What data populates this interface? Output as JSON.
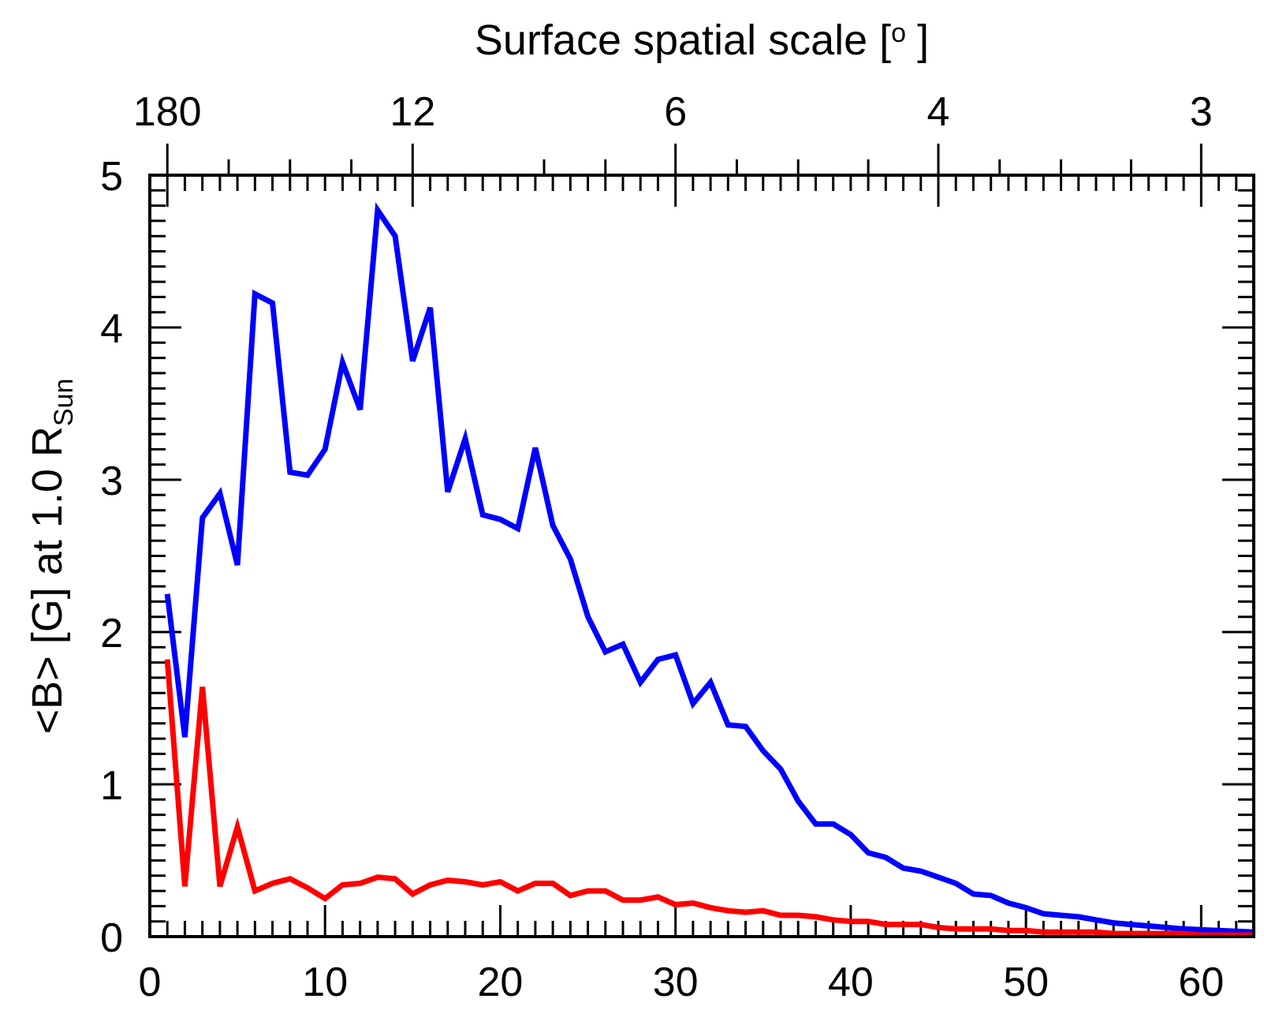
{
  "chart_data": {
    "type": "line",
    "title": "",
    "xlabel": "",
    "ylabel": {
      "main": "<B> [G] at 1.0 R",
      "subscript": "Sun"
    },
    "top_axis": {
      "label_main": "Surface spatial scale [",
      "label_degree": "o",
      "label_close": "]",
      "ticks": [
        {
          "label": "180",
          "x": 1
        },
        {
          "label": "12",
          "x": 15
        },
        {
          "label": "6",
          "x": 30
        },
        {
          "label": "4",
          "x": 45
        },
        {
          "label": "3",
          "x": 60
        }
      ]
    },
    "xlim": [
      0,
      63
    ],
    "ylim": [
      0,
      5
    ],
    "xticks": [
      {
        "value": 0,
        "label": "0"
      },
      {
        "value": 10,
        "label": "10"
      },
      {
        "value": 20,
        "label": "20"
      },
      {
        "value": 30,
        "label": "30"
      },
      {
        "value": 40,
        "label": "40"
      },
      {
        "value": 50,
        "label": "50"
      },
      {
        "value": 60,
        "label": "60"
      }
    ],
    "yticks": [
      {
        "value": 0,
        "label": "0"
      },
      {
        "value": 1,
        "label": "1"
      },
      {
        "value": 2,
        "label": "2"
      },
      {
        "value": 3,
        "label": "3"
      },
      {
        "value": 4,
        "label": "4"
      },
      {
        "value": 5,
        "label": "5"
      }
    ],
    "x": [
      1,
      2,
      3,
      4,
      5,
      6,
      7,
      8,
      9,
      10,
      11,
      12,
      13,
      14,
      15,
      16,
      17,
      18,
      19,
      20,
      21,
      22,
      23,
      24,
      25,
      26,
      27,
      28,
      29,
      30,
      31,
      32,
      33,
      34,
      35,
      36,
      37,
      38,
      39,
      40,
      41,
      42,
      43,
      44,
      45,
      46,
      47,
      48,
      49,
      50,
      51,
      52,
      53,
      54,
      55,
      56,
      57,
      58,
      59,
      60,
      61,
      62,
      63
    ],
    "series": [
      {
        "name": "blue series",
        "color": "#0000ff",
        "values": [
          2.25,
          1.31,
          2.75,
          2.91,
          2.44,
          4.22,
          4.16,
          3.05,
          3.03,
          3.2,
          3.77,
          3.46,
          4.77,
          4.6,
          3.78,
          4.13,
          2.92,
          3.27,
          2.77,
          2.74,
          2.68,
          3.21,
          2.7,
          2.48,
          2.1,
          1.87,
          1.92,
          1.67,
          1.82,
          1.85,
          1.53,
          1.67,
          1.39,
          1.38,
          1.22,
          1.1,
          0.89,
          0.74,
          0.74,
          0.67,
          0.55,
          0.52,
          0.45,
          0.43,
          0.39,
          0.35,
          0.28,
          0.27,
          0.22,
          0.19,
          0.15,
          0.14,
          0.13,
          0.11,
          0.09,
          0.08,
          0.07,
          0.06,
          0.05,
          0.045,
          0.04,
          0.035,
          0.03
        ]
      },
      {
        "name": "red series",
        "color": "#ff0000",
        "values": [
          1.82,
          0.33,
          1.64,
          0.33,
          0.72,
          0.3,
          0.35,
          0.38,
          0.32,
          0.25,
          0.34,
          0.35,
          0.39,
          0.38,
          0.28,
          0.34,
          0.37,
          0.36,
          0.34,
          0.36,
          0.3,
          0.35,
          0.35,
          0.27,
          0.3,
          0.3,
          0.24,
          0.24,
          0.26,
          0.21,
          0.22,
          0.19,
          0.17,
          0.16,
          0.17,
          0.14,
          0.14,
          0.13,
          0.11,
          0.1,
          0.1,
          0.08,
          0.08,
          0.08,
          0.06,
          0.05,
          0.05,
          0.05,
          0.04,
          0.04,
          0.03,
          0.03,
          0.03,
          0.03,
          0.02,
          0.02,
          0.02,
          0.02,
          0.02,
          0.01,
          0.01,
          0.01,
          0.01
        ]
      }
    ]
  }
}
